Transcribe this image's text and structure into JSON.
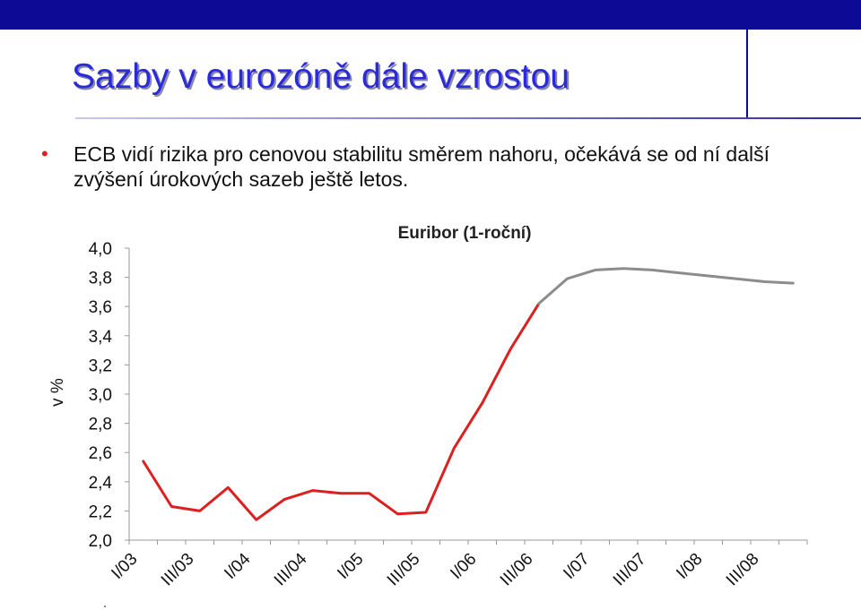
{
  "slide": {
    "title": "Sazby v eurozóně dále vzrostou",
    "bullet_text": "ECB vidí rizika pro cenovou stabilitu směrem nahoru, očekává se od ní další zvýšení úrokových sazeb ještě letos."
  },
  "colors": {
    "band": "#0d0a96",
    "title": "#2a2ad8",
    "bullet": "#e22020",
    "actual_line": "#dd1f1f",
    "forecast_line": "#8c8c8c"
  },
  "chart_data": {
    "type": "line",
    "title": "Euribor (1-roční)",
    "ylabel": "v %",
    "xlabel": "",
    "ylim": [
      2.0,
      4.0
    ],
    "yticks": [
      "4,0",
      "3,8",
      "3,6",
      "3,4",
      "3,2",
      "3,0",
      "2,8",
      "2,6",
      "2,4",
      "2,2",
      "2,0"
    ],
    "x_tick_labels": [
      "I/03",
      "III/03",
      "I/04",
      "III/04",
      "I/05",
      "III/05",
      "I/06",
      "III/06",
      "I/07",
      "III/07",
      "I/08",
      "III/08"
    ],
    "grid": false,
    "series": [
      {
        "values": [
          2.54,
          2.23,
          2.2,
          2.36,
          2.14,
          2.28,
          2.34,
          2.32,
          2.32,
          2.18,
          2.19,
          2.63,
          2.94,
          3.31,
          3.62
        ]
      },
      {
        "values": [
          null,
          null,
          null,
          null,
          null,
          null,
          null,
          null,
          null,
          null,
          null,
          null,
          null,
          null,
          3.62,
          3.79,
          3.85,
          3.86,
          3.85,
          3.83,
          3.81,
          3.79,
          3.77,
          3.76
        ]
      }
    ]
  }
}
